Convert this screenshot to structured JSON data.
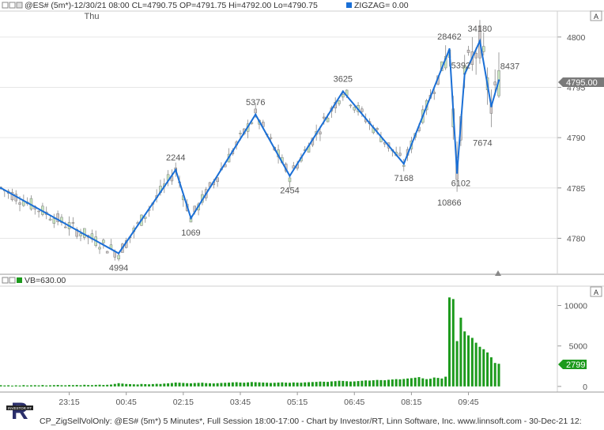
{
  "upper_header": {
    "text": "@ES# (5m*)-12/30/21 08:00  CL=4790.75  OP=4791.75  Hi=4792.00  Lo=4790.75",
    "indicator": "ZIGZAG= 0.00",
    "corner_label": "A"
  },
  "lower_header": {
    "text": "VB=630.00",
    "corner_label": "A"
  },
  "day_label": "Thu",
  "price_current": "4795.00",
  "volume_current": "2799",
  "footer": "CP_ZigSellVolOnly: @ES# (5m*) 5 Minutes*, Full Session 18:00-17:00 - Chart by Investor/RT, Linn Software, Inc.  www.linnsoft.com - 30-Dec-21 12:",
  "logo_text": "INVESTOR RT",
  "colors": {
    "zigzag": "#1a6fd6",
    "candle_up": "#c8e6c0",
    "candle_down": "#d0c8c8",
    "volume": "#1c9a1c",
    "grid": "#e6e6e6",
    "label": "#555555",
    "badge_price": "#7a7a7a",
    "badge_volume": "#1c9a1c"
  },
  "chart_data": [
    {
      "type": "candlestick",
      "title": "",
      "x_tick_labels": [
        "23:15",
        "00:45",
        "02:15",
        "03:45",
        "05:15",
        "06:45",
        "08:15",
        "09:45"
      ],
      "y_ticks": [
        4780,
        4785,
        4790,
        4795,
        4800
      ],
      "ylim": [
        4776.5,
        4802.5
      ],
      "bars": 132,
      "zigzag": [
        {
          "bar": 0,
          "price": 4785
        },
        {
          "bar": 31,
          "price": 4778.5
        },
        {
          "bar": 46,
          "price": 4786.8
        },
        {
          "bar": 50,
          "price": 4782
        },
        {
          "bar": 67,
          "price": 4792.3
        },
        {
          "bar": 76,
          "price": 4786.2
        },
        {
          "bar": 90,
          "price": 4794.6
        },
        {
          "bar": 106,
          "price": 4787.4
        },
        {
          "bar": 118,
          "price": 4798.8
        },
        {
          "bar": 120,
          "price": 4786.5
        },
        {
          "bar": 122,
          "price": 4796.3
        },
        {
          "bar": 126,
          "price": 4799.6
        },
        {
          "bar": 129,
          "price": 4793.1
        },
        {
          "bar": 131,
          "price": 4795.7
        }
      ],
      "swing_volume_labels": [
        {
          "bar": 31,
          "text": "4994",
          "pos": "below"
        },
        {
          "bar": 46,
          "text": "2244",
          "pos": "above"
        },
        {
          "bar": 50,
          "text": "1069",
          "pos": "below"
        },
        {
          "bar": 67,
          "text": "5376",
          "pos": "above"
        },
        {
          "bar": 76,
          "text": "2454",
          "pos": "below"
        },
        {
          "bar": 90,
          "text": "3625",
          "pos": "above"
        },
        {
          "bar": 106,
          "text": "7168",
          "pos": "below"
        },
        {
          "bar": 118,
          "text": "28462",
          "pos": "above"
        },
        {
          "bar": 119,
          "text": "10866",
          "pos": "below"
        },
        {
          "bar": 121,
          "text": "5392",
          "pos": "mid"
        },
        {
          "bar": 121,
          "text": "6102",
          "pos": "below"
        },
        {
          "bar": 126,
          "text": "34180",
          "pos": "above"
        },
        {
          "bar": 131,
          "text": "8437",
          "pos": "above"
        },
        {
          "bar": 129,
          "text": "7674",
          "pos": "below"
        }
      ]
    },
    {
      "type": "bar",
      "title": "",
      "y_ticks": [
        0,
        5000,
        10000
      ],
      "ylim": [
        -600,
        12200
      ],
      "volumes": [
        150,
        120,
        140,
        100,
        130,
        110,
        160,
        120,
        140,
        150,
        130,
        170,
        120,
        140,
        160,
        180,
        150,
        140,
        170,
        160,
        180,
        150,
        200,
        170,
        160,
        190,
        210,
        180,
        200,
        230,
        310,
        400,
        350,
        300,
        280,
        260,
        240,
        300,
        280,
        260,
        290,
        320,
        300,
        350,
        380,
        420,
        480,
        460,
        430,
        400,
        380,
        420,
        440,
        460,
        410,
        390,
        370,
        400,
        430,
        450,
        470,
        500,
        520,
        480,
        460,
        500,
        540,
        520,
        500,
        480,
        460,
        430,
        450,
        480,
        500,
        470,
        450,
        490,
        470,
        460,
        500,
        520,
        540,
        560,
        600,
        580,
        560,
        620,
        650,
        700,
        680,
        640,
        600,
        620,
        660,
        700,
        740,
        720,
        760,
        800,
        780,
        760,
        820,
        860,
        900,
        880,
        920,
        980,
        1020,
        1080,
        1150,
        1000,
        900,
        950,
        1100,
        1050,
        980,
        1200,
        11000,
        10800,
        5600,
        8500,
        6800,
        6300,
        6000,
        5400,
        4900,
        4600,
        4200,
        3600,
        2900,
        2799
      ]
    }
  ]
}
